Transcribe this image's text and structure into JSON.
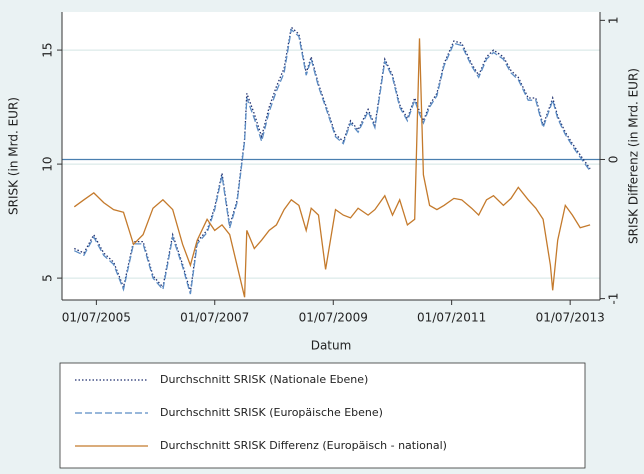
{
  "chart_data": {
    "type": "line",
    "ylabel": "SRISK (in Mrd. EUR)",
    "y2label": "SRISK Differenz (in Mrd. EUR)",
    "xlabel": "Datum",
    "x": [
      "2005-02-15",
      "2005-04-15",
      "2005-06-15",
      "2005-08-15",
      "2005-10-15",
      "2005-12-15",
      "2006-02-15",
      "2006-04-15",
      "2006-06-15",
      "2006-08-15",
      "2006-10-15",
      "2006-12-15",
      "2007-02-01",
      "2007-03-15",
      "2007-05-15",
      "2007-07-01",
      "2007-08-15",
      "2007-10-01",
      "2007-11-15",
      "2008-01-01",
      "2008-01-15",
      "2008-03-01",
      "2008-04-15",
      "2008-06-01",
      "2008-07-15",
      "2008-09-01",
      "2008-10-15",
      "2008-12-01",
      "2009-01-15",
      "2009-02-15",
      "2009-04-01",
      "2009-05-15",
      "2009-07-15",
      "2009-09-01",
      "2009-10-15",
      "2009-12-01",
      "2010-02-01",
      "2010-03-15",
      "2010-05-15",
      "2010-07-01",
      "2010-08-15",
      "2010-10-01",
      "2010-11-15",
      "2010-12-15",
      "2011-01-08",
      "2011-02-15",
      "2011-04-01",
      "2011-05-15",
      "2011-07-15",
      "2011-09-01",
      "2011-11-01",
      "2011-12-15",
      "2012-02-01",
      "2012-03-15",
      "2012-05-15",
      "2012-07-01",
      "2012-08-15",
      "2012-10-15",
      "2012-12-01",
      "2013-01-15",
      "2013-03-01",
      "2013-03-15",
      "2013-04-15",
      "2013-06-01",
      "2013-07-15",
      "2013-09-01",
      "2013-11-01"
    ],
    "series": [
      {
        "name": "Durchschnitt SRISK (Nationale Ebene)",
        "color": "#1f2f6e",
        "style": "dotted",
        "axis": "y",
        "values": [
          6.3,
          6.1,
          6.9,
          6.1,
          5.7,
          4.6,
          6.6,
          6.6,
          5.1,
          4.6,
          6.9,
          5.6,
          4.4,
          6.6,
          7.1,
          8.1,
          9.6,
          7.3,
          8.4,
          11.1,
          13.1,
          12.2,
          11.2,
          12.5,
          13.4,
          14.2,
          16.0,
          15.7,
          14.0,
          14.7,
          13.5,
          12.6,
          11.3,
          11.0,
          11.9,
          11.5,
          12.4,
          11.7,
          14.6,
          13.9,
          12.6,
          12.0,
          12.9,
          12.3,
          11.9,
          12.6,
          13.1,
          14.4,
          15.4,
          15.3,
          14.4,
          13.9,
          14.7,
          15.0,
          14.7,
          14.1,
          13.8,
          12.9,
          12.9,
          11.7,
          12.6,
          12.9,
          12.1,
          11.4,
          10.9,
          10.4,
          9.8
        ]
      },
      {
        "name": "Durchschnitt SRISK (Europäische Ebene)",
        "color": "#5b8cc4",
        "style": "dashed",
        "axis": "y",
        "values": [
          6.2,
          6.0,
          6.8,
          6.0,
          5.6,
          4.5,
          6.5,
          6.5,
          5.0,
          4.5,
          6.8,
          5.5,
          4.3,
          6.5,
          7.0,
          8.0,
          9.5,
          7.2,
          8.3,
          11.0,
          12.9,
          12.0,
          11.0,
          12.3,
          13.2,
          14.0,
          15.9,
          15.6,
          13.9,
          14.6,
          13.4,
          12.5,
          11.2,
          10.9,
          11.8,
          11.4,
          12.3,
          11.6,
          14.5,
          13.8,
          12.5,
          11.9,
          12.8,
          12.2,
          11.8,
          12.5,
          13.0,
          14.3,
          15.3,
          15.2,
          14.3,
          13.8,
          14.6,
          14.9,
          14.6,
          14.0,
          13.7,
          12.8,
          12.8,
          11.6,
          12.5,
          12.8,
          12.0,
          11.3,
          10.8,
          10.3,
          9.7
        ]
      },
      {
        "name": "Durchschnitt SRISK Differenz (Europäisch - national)",
        "color": "#c47a2c",
        "style": "solid",
        "axis": "y2",
        "values": [
          -0.34,
          -0.29,
          -0.24,
          -0.31,
          -0.36,
          -0.38,
          -0.61,
          -0.54,
          -0.35,
          -0.29,
          -0.36,
          -0.61,
          -0.76,
          -0.58,
          -0.43,
          -0.51,
          -0.47,
          -0.54,
          -0.76,
          -0.99,
          -0.51,
          -0.64,
          -0.58,
          -0.51,
          -0.47,
          -0.36,
          -0.29,
          -0.33,
          -0.51,
          -0.35,
          -0.4,
          -0.79,
          -0.36,
          -0.4,
          -0.42,
          -0.35,
          -0.4,
          -0.36,
          -0.26,
          -0.4,
          -0.29,
          -0.47,
          -0.43,
          0.87,
          -0.11,
          -0.33,
          -0.36,
          -0.33,
          -0.28,
          -0.29,
          -0.35,
          -0.4,
          -0.29,
          -0.26,
          -0.33,
          -0.28,
          -0.2,
          -0.29,
          -0.35,
          -0.43,
          -0.76,
          -0.94,
          -0.58,
          -0.33,
          -0.4,
          -0.49,
          -0.47
        ]
      }
    ],
    "xlim": [
      "2004-12-01",
      "2014-01-01"
    ],
    "xticks": [
      {
        "value": "2005-07-01",
        "label": "01/07/2005"
      },
      {
        "value": "2007-07-01",
        "label": "01/07/2007"
      },
      {
        "value": "2009-07-01",
        "label": "01/07/2009"
      },
      {
        "value": "2011-07-01",
        "label": "01/07/2011"
      },
      {
        "value": "2013-07-01",
        "label": "01/07/2013"
      }
    ],
    "ylim": [
      4.04,
      16.67
    ],
    "yticks": [
      5,
      10,
      15
    ],
    "y2lim": [
      -1.01,
      1.06
    ],
    "y2ticks": [
      -1,
      0,
      1
    ],
    "y2refline": 0,
    "grid": true,
    "legend": "bottom"
  }
}
